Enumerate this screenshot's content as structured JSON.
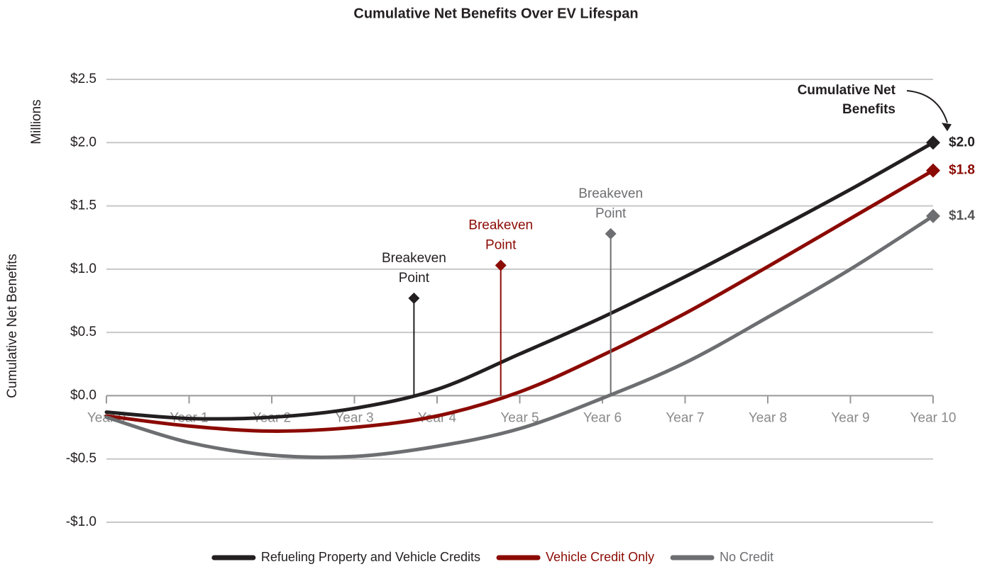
{
  "chart_data": {
    "type": "line",
    "title": "Cumulative Net Benefits Over EV Lifespan",
    "y_unit_label": "Millions",
    "ylabel": "Cumulative Net Benefits",
    "x": [
      0,
      1,
      2,
      3,
      4,
      5,
      6,
      7,
      8,
      9,
      10
    ],
    "xlim": [
      0,
      10
    ],
    "xticks": [
      {
        "value": 0,
        "label": "Year 0"
      },
      {
        "value": 1,
        "label": "Year 1"
      },
      {
        "value": 2,
        "label": "Year 2"
      },
      {
        "value": 3,
        "label": "Year 3"
      },
      {
        "value": 4,
        "label": "Year 4"
      },
      {
        "value": 5,
        "label": "Year 5"
      },
      {
        "value": 6,
        "label": "Year 6"
      },
      {
        "value": 7,
        "label": "Year 7"
      },
      {
        "value": 8,
        "label": "Year 8"
      },
      {
        "value": 9,
        "label": "Year 9"
      },
      {
        "value": 10,
        "label": "Year 10"
      }
    ],
    "ylim": [
      -1.0,
      2.5
    ],
    "yticks": [
      {
        "value": -1.0,
        "label": "-$1.0"
      },
      {
        "value": -0.5,
        "label": "-$0.5"
      },
      {
        "value": 0.0,
        "label": "$0.0"
      },
      {
        "value": 0.5,
        "label": "$0.5"
      },
      {
        "value": 1.0,
        "label": "$1.0"
      },
      {
        "value": 1.5,
        "label": "$1.5"
      },
      {
        "value": 2.0,
        "label": "$2.0"
      },
      {
        "value": 2.5,
        "label": "$2.5"
      }
    ],
    "grid": true,
    "legend": "bottom",
    "series": [
      {
        "name": "Refueling Property and Vehicle Credits",
        "color": "#231f20",
        "values": [
          -0.13,
          -0.18,
          -0.17,
          -0.1,
          0.05,
          0.33,
          0.62,
          0.94,
          1.28,
          1.63,
          2.0
        ],
        "end_label": "$2.0",
        "breakeven": {
          "x": 3.72,
          "y": 0.77,
          "text": [
            "Breakeven",
            "Point"
          ]
        }
      },
      {
        "name": "Vehicle Credit Only",
        "color": "#8b0a03",
        "values": [
          -0.16,
          -0.24,
          -0.28,
          -0.25,
          -0.16,
          0.03,
          0.32,
          0.65,
          1.02,
          1.4,
          1.78
        ],
        "end_label": "$1.8",
        "breakeven": {
          "x": 4.77,
          "y": 1.03,
          "text": [
            "Breakeven",
            "Point"
          ]
        }
      },
      {
        "name": "No Credit",
        "color": "#6d6e71",
        "values": [
          -0.17,
          -0.37,
          -0.47,
          -0.48,
          -0.4,
          -0.26,
          -0.02,
          0.26,
          0.62,
          1.0,
          1.42
        ],
        "end_label": "$1.4",
        "breakeven": {
          "x": 6.1,
          "y": 1.28,
          "text": [
            "Breakeven",
            "Point"
          ]
        }
      }
    ],
    "annotation": {
      "text": [
        "Cumulative Net",
        "Benefits"
      ]
    }
  }
}
